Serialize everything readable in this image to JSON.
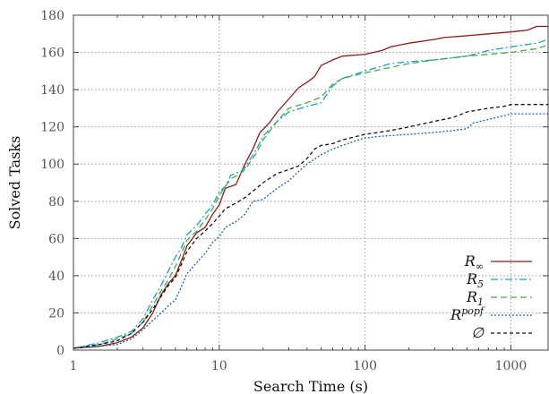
{
  "chart_data": {
    "type": "line",
    "title": "",
    "xlabel": "Search Time (s)",
    "ylabel": "Solved Tasks",
    "xscale": "log",
    "xlim": [
      1,
      1800
    ],
    "ylim": [
      0,
      180
    ],
    "xticks": [
      1,
      10,
      100,
      1000
    ],
    "xtick_labels": [
      "1",
      "10",
      "100",
      "1000"
    ],
    "yticks": [
      0,
      20,
      40,
      60,
      80,
      100,
      120,
      140,
      160,
      180
    ],
    "ytick_labels": [
      "0",
      "20",
      "40",
      "60",
      "80",
      "100",
      "120",
      "140",
      "160",
      "180"
    ],
    "grid": true,
    "legend_position": "bottom-right",
    "series": [
      {
        "name": "R∞",
        "base": "R",
        "sub": "∞",
        "sup": "",
        "color": "#8B1A1A",
        "dash": "",
        "points": [
          [
            1,
            1
          ],
          [
            1.5,
            2
          ],
          [
            2,
            4
          ],
          [
            2.5,
            7
          ],
          [
            3,
            12
          ],
          [
            3.5,
            20
          ],
          [
            4,
            30
          ],
          [
            4.5,
            36
          ],
          [
            5,
            40
          ],
          [
            5.5,
            48
          ],
          [
            6,
            56
          ],
          [
            7,
            63
          ],
          [
            8,
            66
          ],
          [
            9,
            73
          ],
          [
            10,
            78
          ],
          [
            11,
            87
          ],
          [
            13,
            89
          ],
          [
            15,
            100
          ],
          [
            17,
            108
          ],
          [
            19,
            117
          ],
          [
            22,
            122
          ],
          [
            25,
            128
          ],
          [
            30,
            135
          ],
          [
            35,
            141
          ],
          [
            40,
            144
          ],
          [
            45,
            147
          ],
          [
            50,
            153
          ],
          [
            60,
            156
          ],
          [
            70,
            158
          ],
          [
            100,
            159
          ],
          [
            130,
            161
          ],
          [
            150,
            163
          ],
          [
            200,
            165
          ],
          [
            300,
            167
          ],
          [
            350,
            168
          ],
          [
            500,
            169
          ],
          [
            700,
            170
          ],
          [
            1000,
            171
          ],
          [
            1300,
            172
          ],
          [
            1500,
            174
          ],
          [
            1800,
            174
          ]
        ]
      },
      {
        "name": "R5",
        "base": "R",
        "sub": "5",
        "sup": "",
        "color": "#17A2C4",
        "dash": "8 3 2 3",
        "points": [
          [
            1,
            1
          ],
          [
            1.5,
            4
          ],
          [
            2,
            7
          ],
          [
            2.5,
            10
          ],
          [
            3,
            17
          ],
          [
            3.5,
            27
          ],
          [
            4,
            35
          ],
          [
            4.5,
            43
          ],
          [
            5,
            50
          ],
          [
            5.5,
            55
          ],
          [
            6,
            62
          ],
          [
            7,
            67
          ],
          [
            8,
            73
          ],
          [
            9,
            78
          ],
          [
            10,
            85
          ],
          [
            11,
            88
          ],
          [
            12,
            94
          ],
          [
            14,
            96
          ],
          [
            15,
            98
          ],
          [
            18,
            108
          ],
          [
            20,
            115
          ],
          [
            25,
            123
          ],
          [
            30,
            128
          ],
          [
            40,
            131
          ],
          [
            50,
            133
          ],
          [
            60,
            142
          ],
          [
            70,
            146
          ],
          [
            100,
            150
          ],
          [
            150,
            154
          ],
          [
            200,
            155
          ],
          [
            300,
            156
          ],
          [
            500,
            158
          ],
          [
            700,
            161
          ],
          [
            1000,
            163
          ],
          [
            1500,
            165
          ],
          [
            1800,
            167
          ]
        ]
      },
      {
        "name": "R1",
        "base": "R",
        "sub": "1",
        "sup": "",
        "color": "#4CA64C",
        "dash": "7 4",
        "points": [
          [
            1,
            1
          ],
          [
            1.5,
            3
          ],
          [
            2,
            6
          ],
          [
            2.5,
            9
          ],
          [
            3,
            15
          ],
          [
            3.5,
            24
          ],
          [
            4,
            32
          ],
          [
            4.5,
            38
          ],
          [
            5,
            45
          ],
          [
            5.5,
            52
          ],
          [
            6,
            59
          ],
          [
            7,
            64
          ],
          [
            8,
            70
          ],
          [
            9,
            76
          ],
          [
            10,
            83
          ],
          [
            11,
            88
          ],
          [
            12,
            92
          ],
          [
            14,
            95
          ],
          [
            15,
            97
          ],
          [
            18,
            106
          ],
          [
            20,
            113
          ],
          [
            25,
            123
          ],
          [
            30,
            130
          ],
          [
            40,
            133
          ],
          [
            50,
            136
          ],
          [
            60,
            143
          ],
          [
            70,
            146
          ],
          [
            100,
            149
          ],
          [
            150,
            152
          ],
          [
            200,
            154
          ],
          [
            300,
            156
          ],
          [
            500,
            158
          ],
          [
            700,
            159
          ],
          [
            1000,
            160
          ],
          [
            1500,
            162
          ],
          [
            1800,
            164
          ]
        ]
      },
      {
        "name": "Rpopf",
        "base": "R",
        "sub": "",
        "sup": "popf",
        "color": "#1F5FAF",
        "dash": "2 2",
        "points": [
          [
            1,
            1
          ],
          [
            1.5,
            2
          ],
          [
            2,
            3
          ],
          [
            2.5,
            6
          ],
          [
            3,
            11
          ],
          [
            3.5,
            16
          ],
          [
            4,
            20
          ],
          [
            4.5,
            24
          ],
          [
            5,
            27
          ],
          [
            5.5,
            34
          ],
          [
            6,
            41
          ],
          [
            7,
            47
          ],
          [
            8,
            52
          ],
          [
            9,
            58
          ],
          [
            10,
            61
          ],
          [
            11,
            66
          ],
          [
            13,
            69
          ],
          [
            15,
            73
          ],
          [
            17,
            80
          ],
          [
            20,
            81
          ],
          [
            25,
            87
          ],
          [
            30,
            91
          ],
          [
            35,
            96
          ],
          [
            40,
            100
          ],
          [
            50,
            105
          ],
          [
            60,
            108
          ],
          [
            70,
            110
          ],
          [
            90,
            113
          ],
          [
            100,
            114
          ],
          [
            130,
            115
          ],
          [
            200,
            116
          ],
          [
            300,
            117
          ],
          [
            400,
            118
          ],
          [
            500,
            119
          ],
          [
            550,
            122
          ],
          [
            700,
            124
          ],
          [
            900,
            126
          ],
          [
            1000,
            127
          ],
          [
            1500,
            127
          ],
          [
            1800,
            127
          ]
        ]
      },
      {
        "name": "∅",
        "base": "∅",
        "sub": "",
        "sup": "",
        "color": "#111111",
        "dash": "4 3",
        "points": [
          [
            1,
            1
          ],
          [
            1.5,
            3
          ],
          [
            2,
            5
          ],
          [
            2.5,
            9
          ],
          [
            3,
            15
          ],
          [
            3.5,
            22
          ],
          [
            4,
            29
          ],
          [
            4.5,
            35
          ],
          [
            5,
            39
          ],
          [
            5.5,
            46
          ],
          [
            6,
            53
          ],
          [
            7,
            60
          ],
          [
            8,
            64
          ],
          [
            9,
            68
          ],
          [
            10,
            72
          ],
          [
            11,
            76
          ],
          [
            13,
            79
          ],
          [
            15,
            82
          ],
          [
            18,
            87
          ],
          [
            20,
            90
          ],
          [
            25,
            95
          ],
          [
            30,
            97
          ],
          [
            35,
            99
          ],
          [
            40,
            103
          ],
          [
            45,
            108
          ],
          [
            50,
            110
          ],
          [
            60,
            111
          ],
          [
            70,
            113
          ],
          [
            100,
            116
          ],
          [
            150,
            118
          ],
          [
            200,
            120
          ],
          [
            300,
            123
          ],
          [
            400,
            125
          ],
          [
            500,
            128
          ],
          [
            700,
            130
          ],
          [
            900,
            131
          ],
          [
            1000,
            132
          ],
          [
            1500,
            132
          ],
          [
            1800,
            132
          ]
        ]
      }
    ]
  }
}
